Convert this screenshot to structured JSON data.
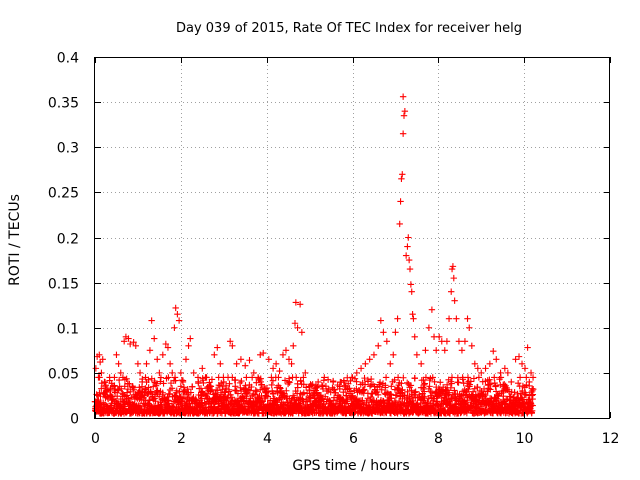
{
  "chart_data": {
    "type": "scatter",
    "title": "Day 039 of 2015, Rate Of TEC Index for receiver helg",
    "xlabel": "GPS time / hours",
    "ylabel": "ROTI / TECUs",
    "xlim": [
      0,
      12
    ],
    "ylim": [
      0,
      0.4
    ],
    "x_ticks": [
      0,
      2,
      4,
      6,
      8,
      10,
      12
    ],
    "x_tick_labels": [
      "0",
      "2",
      "4",
      "6",
      "8",
      "10",
      "12"
    ],
    "y_ticks": [
      0,
      0.05,
      0.1,
      0.15,
      0.2,
      0.25,
      0.3,
      0.35,
      0.4
    ],
    "y_tick_labels": [
      "0",
      "0.05",
      "0.1",
      "0.15",
      "0.2",
      "0.25",
      "0.3",
      "0.35",
      "0.4"
    ],
    "grid": true,
    "marker": "+",
    "color": "#ff0000",
    "series": [
      {
        "name": "ROTI",
        "points": [
          [
            0.0,
            0.018
          ],
          [
            0.02,
            0.055
          ],
          [
            0.05,
            0.068
          ],
          [
            0.08,
            0.045
          ],
          [
            0.1,
            0.07
          ],
          [
            0.12,
            0.062
          ],
          [
            0.15,
            0.05
          ],
          [
            0.18,
            0.065
          ],
          [
            0.22,
            0.04
          ],
          [
            0.28,
            0.03
          ],
          [
            0.35,
            0.025
          ],
          [
            0.42,
            0.035
          ],
          [
            0.5,
            0.07
          ],
          [
            0.55,
            0.06
          ],
          [
            0.6,
            0.05
          ],
          [
            0.68,
            0.085
          ],
          [
            0.72,
            0.09
          ],
          [
            0.78,
            0.088
          ],
          [
            0.82,
            0.082
          ],
          [
            0.9,
            0.084
          ],
          [
            0.95,
            0.08
          ],
          [
            1.0,
            0.06
          ],
          [
            1.05,
            0.05
          ],
          [
            1.1,
            0.04
          ],
          [
            1.2,
            0.06
          ],
          [
            1.28,
            0.075
          ],
          [
            1.32,
            0.108
          ],
          [
            1.38,
            0.088
          ],
          [
            1.45,
            0.065
          ],
          [
            1.5,
            0.05
          ],
          [
            1.58,
            0.07
          ],
          [
            1.65,
            0.082
          ],
          [
            1.7,
            0.078
          ],
          [
            1.75,
            0.06
          ],
          [
            1.8,
            0.05
          ],
          [
            1.85,
            0.1
          ],
          [
            1.88,
            0.122
          ],
          [
            1.92,
            0.115
          ],
          [
            1.96,
            0.108
          ],
          [
            2.0,
            0.05
          ],
          [
            2.05,
            0.04
          ],
          [
            2.12,
            0.065
          ],
          [
            2.18,
            0.08
          ],
          [
            2.22,
            0.088
          ],
          [
            2.3,
            0.05
          ],
          [
            2.4,
            0.045
          ],
          [
            2.5,
            0.055
          ],
          [
            2.6,
            0.045
          ],
          [
            2.7,
            0.035
          ],
          [
            2.78,
            0.07
          ],
          [
            2.85,
            0.078
          ],
          [
            2.92,
            0.06
          ],
          [
            3.0,
            0.04
          ],
          [
            3.1,
            0.045
          ],
          [
            3.15,
            0.085
          ],
          [
            3.2,
            0.08
          ],
          [
            3.3,
            0.06
          ],
          [
            3.4,
            0.065
          ],
          [
            3.5,
            0.058
          ],
          [
            3.6,
            0.064
          ],
          [
            3.7,
            0.05
          ],
          [
            3.8,
            0.045
          ],
          [
            3.85,
            0.07
          ],
          [
            3.92,
            0.072
          ],
          [
            4.05,
            0.065
          ],
          [
            4.15,
            0.055
          ],
          [
            4.22,
            0.06
          ],
          [
            4.3,
            0.052
          ],
          [
            4.38,
            0.07
          ],
          [
            4.45,
            0.075
          ],
          [
            4.52,
            0.065
          ],
          [
            4.58,
            0.06
          ],
          [
            4.62,
            0.08
          ],
          [
            4.66,
            0.105
          ],
          [
            4.68,
            0.128
          ],
          [
            4.72,
            0.1
          ],
          [
            4.78,
            0.126
          ],
          [
            4.82,
            0.095
          ],
          [
            4.9,
            0.05
          ],
          [
            5.0,
            0.035
          ],
          [
            5.1,
            0.03
          ],
          [
            5.2,
            0.04
          ],
          [
            5.3,
            0.035
          ],
          [
            5.4,
            0.03
          ],
          [
            5.55,
            0.04
          ],
          [
            5.7,
            0.035
          ],
          [
            5.8,
            0.04
          ],
          [
            5.9,
            0.038
          ],
          [
            6.0,
            0.045
          ],
          [
            6.1,
            0.05
          ],
          [
            6.2,
            0.055
          ],
          [
            6.3,
            0.06
          ],
          [
            6.4,
            0.065
          ],
          [
            6.5,
            0.07
          ],
          [
            6.6,
            0.08
          ],
          [
            6.66,
            0.108
          ],
          [
            6.72,
            0.095
          ],
          [
            6.8,
            0.085
          ],
          [
            6.88,
            0.06
          ],
          [
            6.95,
            0.07
          ],
          [
            7.0,
            0.095
          ],
          [
            7.05,
            0.11
          ],
          [
            7.1,
            0.215
          ],
          [
            7.12,
            0.24
          ],
          [
            7.14,
            0.265
          ],
          [
            7.16,
            0.27
          ],
          [
            7.18,
            0.315
          ],
          [
            7.2,
            0.335
          ],
          [
            7.22,
            0.34
          ],
          [
            7.18,
            0.356
          ],
          [
            7.25,
            0.18
          ],
          [
            7.28,
            0.19
          ],
          [
            7.3,
            0.2
          ],
          [
            7.32,
            0.175
          ],
          [
            7.34,
            0.165
          ],
          [
            7.36,
            0.148
          ],
          [
            7.38,
            0.14
          ],
          [
            7.4,
            0.115
          ],
          [
            7.42,
            0.11
          ],
          [
            7.45,
            0.09
          ],
          [
            7.5,
            0.07
          ],
          [
            7.6,
            0.06
          ],
          [
            7.7,
            0.075
          ],
          [
            7.78,
            0.1
          ],
          [
            7.85,
            0.12
          ],
          [
            7.9,
            0.09
          ],
          [
            7.95,
            0.075
          ],
          [
            8.02,
            0.09
          ],
          [
            8.08,
            0.085
          ],
          [
            8.15,
            0.075
          ],
          [
            8.2,
            0.085
          ],
          [
            8.25,
            0.11
          ],
          [
            8.3,
            0.14
          ],
          [
            8.32,
            0.165
          ],
          [
            8.34,
            0.168
          ],
          [
            8.36,
            0.155
          ],
          [
            8.38,
            0.13
          ],
          [
            8.42,
            0.11
          ],
          [
            8.48,
            0.085
          ],
          [
            8.55,
            0.075
          ],
          [
            8.62,
            0.085
          ],
          [
            8.68,
            0.11
          ],
          [
            8.72,
            0.1
          ],
          [
            8.78,
            0.08
          ],
          [
            8.85,
            0.06
          ],
          [
            8.92,
            0.055
          ],
          [
            9.0,
            0.05
          ],
          [
            9.1,
            0.055
          ],
          [
            9.2,
            0.06
          ],
          [
            9.28,
            0.074
          ],
          [
            9.35,
            0.065
          ],
          [
            9.45,
            0.05
          ],
          [
            9.55,
            0.055
          ],
          [
            9.62,
            0.05
          ],
          [
            9.7,
            0.04
          ],
          [
            9.8,
            0.065
          ],
          [
            9.88,
            0.068
          ],
          [
            9.95,
            0.06
          ],
          [
            10.02,
            0.055
          ],
          [
            10.08,
            0.078
          ],
          [
            10.12,
            0.04
          ],
          [
            10.16,
            0.05
          ],
          [
            10.18,
            0.025
          ]
        ]
      }
    ],
    "baseline_band": {
      "description": "dense cloud of points along the bottom between 0.005 and 0.045 TECUs",
      "x_range": [
        0.0,
        10.2
      ],
      "y_range": [
        0.005,
        0.045
      ]
    }
  }
}
